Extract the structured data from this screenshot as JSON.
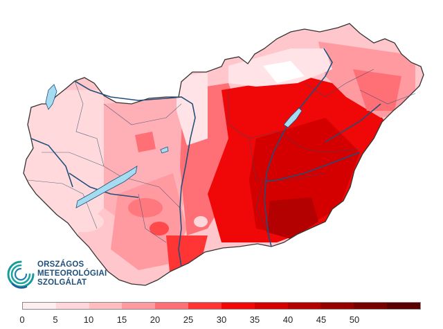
{
  "logo": {
    "lines": [
      "ORSZÁGOS",
      "METEOROLÓGIAI",
      "SZOLGÁLAT"
    ],
    "color": "#1f4f7a",
    "icon": "omsz-swirl-icon"
  },
  "legend": {
    "colors": [
      "#ffeef0",
      "#ffd6da",
      "#ffbdc2",
      "#ff9aa1",
      "#ff6f76",
      "#ff3434",
      "#f00808",
      "#d40000",
      "#b30000",
      "#940000",
      "#760000",
      "#5a0000"
    ],
    "labels": [
      "0",
      "5",
      "10",
      "15",
      "20",
      "25",
      "30",
      "35",
      "40",
      "45",
      "50"
    ]
  },
  "map": {
    "lake_color": "#a6dcf2",
    "river_color": "#1f4f7a",
    "border_color": "#333333"
  }
}
